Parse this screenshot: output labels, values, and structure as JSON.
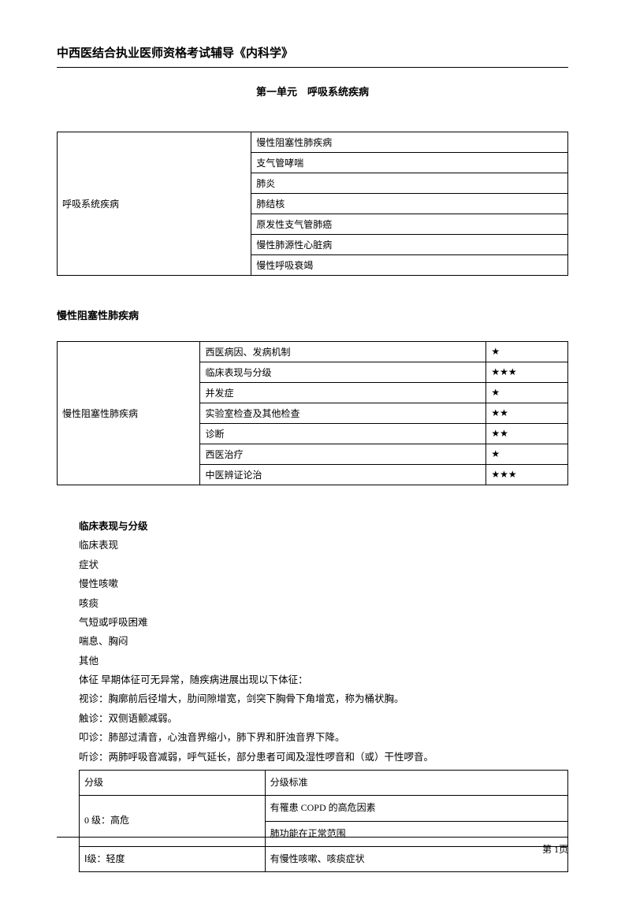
{
  "header": {
    "title": "中西医结合执业医师资格考试辅导《内科学》"
  },
  "unit_title": "第一单元　呼吸系统疾病",
  "table1": {
    "col_widths": [
      "38%",
      "62%"
    ],
    "category": "呼吸系统疾病",
    "items": [
      "慢性阻塞性肺疾病",
      "支气管哮喘",
      "肺炎",
      "肺结核",
      "原发性支气管肺癌",
      "慢性肺源性心脏病",
      "慢性呼吸衰竭"
    ]
  },
  "section1_heading": "慢性阻塞性肺疾病",
  "table2": {
    "col_widths": [
      "28%",
      "56%",
      "16%"
    ],
    "category": "慢性阻塞性肺疾病",
    "rows": [
      {
        "topic": "西医病因、发病机制",
        "stars": "★"
      },
      {
        "topic": "临床表现与分级",
        "stars": "★★★"
      },
      {
        "topic": "并发症",
        "stars": "★"
      },
      {
        "topic": "实验室检查及其他检查",
        "stars": "★★"
      },
      {
        "topic": "诊断",
        "stars": "★★"
      },
      {
        "topic": "西医治疗",
        "stars": "★"
      },
      {
        "topic": "中医辨证论治",
        "stars": "★★★"
      }
    ]
  },
  "clinical": {
    "heading": "临床表现与分级",
    "lines": [
      "临床表现",
      "症状",
      "慢性咳嗽",
      "咳痰",
      "气短或呼吸困难",
      "喘息、胸闷",
      "其他",
      "体征  早期体征可无异常，随疾病进展出现以下体征：",
      "视诊：胸廓前后径增大，肋间隙增宽，剑突下胸骨下角增宽，称为桶状胸。",
      "触诊：双侧语颤减弱。",
      "叩诊：肺部过清音，心浊音界缩小，肺下界和肝浊音界下降。",
      "听诊：两肺呼吸音减弱，呼气延长，部分患者可闻及湿性啰音和（或）干性啰音。"
    ]
  },
  "table3": {
    "col_widths": [
      "38%",
      "62%"
    ],
    "header": [
      "分级",
      "分级标准"
    ],
    "rows": [
      {
        "level": "0 级：高危",
        "std": [
          "有罹患 COPD 的高危因素",
          "肺功能在正常范围"
        ]
      },
      {
        "level": "Ⅰ级：轻度",
        "std": [
          "有慢性咳嗽、咳痰症状"
        ]
      }
    ]
  },
  "footer": {
    "page": "第 1页"
  },
  "colors": {
    "text": "#000000",
    "background": "#ffffff",
    "border": "#000000"
  }
}
